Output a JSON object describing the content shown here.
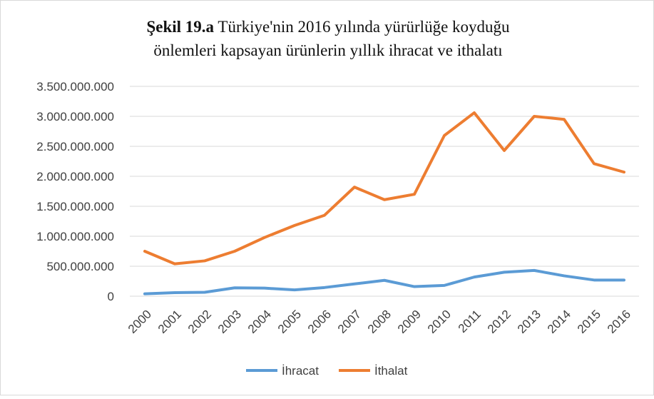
{
  "chart_data": {
    "type": "line",
    "title_prefix": "Şekil 19.a",
    "title_lines": [
      "Türkiye'nin 2016 yılında yürürlüğe koyduğu",
      "önlemleri kapsayan ürünlerin yıllık ihracat ve ithalatı"
    ],
    "categories": [
      "2000",
      "2001",
      "2002",
      "2003",
      "2004",
      "2005",
      "2006",
      "2007",
      "2008",
      "2009",
      "2010",
      "2011",
      "2012",
      "2013",
      "2014",
      "2015",
      "2016"
    ],
    "series": [
      {
        "name": "İhracat",
        "color": "#5b9bd5",
        "values": [
          40000000,
          60000000,
          65000000,
          140000000,
          135000000,
          105000000,
          145000000,
          205000000,
          265000000,
          160000000,
          180000000,
          320000000,
          400000000,
          430000000,
          340000000,
          270000000,
          270000000
        ]
      },
      {
        "name": "İthalat",
        "color": "#ed7d31",
        "values": [
          750000000,
          540000000,
          590000000,
          750000000,
          980000000,
          1180000000,
          1350000000,
          1820000000,
          1610000000,
          1700000000,
          2680000000,
          3060000000,
          2430000000,
          3000000000,
          2950000000,
          2210000000,
          2070000000
        ]
      }
    ],
    "ylim": [
      0,
      3500000000
    ],
    "yticks": [
      0,
      {
        "value": 500000000,
        "label": "500.000.000"
      },
      {
        "value": 1000000000,
        "label": "1.000.000.000"
      },
      {
        "value": 1500000000,
        "label": "1.500.000.000"
      },
      {
        "value": 2000000000,
        "label": "2.000.000.000"
      },
      {
        "value": 2500000000,
        "label": "2.500.000.000"
      },
      {
        "value": 3000000000,
        "label": "3.000.000.000"
      },
      {
        "value": 3500000000,
        "label": "3.500.000.000"
      }
    ],
    "grid": true,
    "legend": "bottom"
  }
}
